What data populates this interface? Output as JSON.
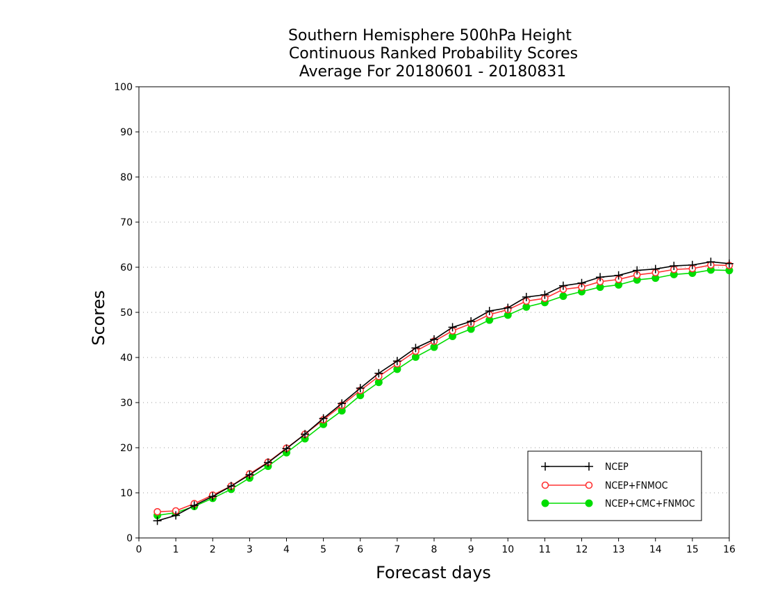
{
  "chart_data": {
    "type": "line",
    "title_lines": [
      "Southern Hemisphere 500hPa Height",
      "Continuous Ranked Probability Scores",
      "Average For 20180601 - 20180831"
    ],
    "xlabel": "Forecast days",
    "ylabel": "Scores",
    "xlim": [
      0,
      16
    ],
    "ylim": [
      0,
      100
    ],
    "xticks": [
      0,
      1,
      2,
      3,
      4,
      5,
      6,
      7,
      8,
      9,
      10,
      11,
      12,
      13,
      14,
      15,
      16
    ],
    "yticks": [
      0,
      10,
      20,
      30,
      40,
      50,
      60,
      70,
      80,
      90,
      100
    ],
    "grid": "horizontal dotted",
    "legend_position": "bottom-right",
    "x": [
      0.5,
      1,
      1.5,
      2,
      2.5,
      3,
      3.5,
      4,
      4.5,
      5,
      5.5,
      6,
      6.5,
      7,
      7.5,
      8,
      8.5,
      9,
      9.5,
      10,
      10.5,
      11,
      11.5,
      12,
      12.5,
      13,
      13.5,
      14,
      14.5,
      15,
      15.5,
      16
    ],
    "series": [
      {
        "name": "NCEP",
        "color": "#000000",
        "marker": "plus",
        "values": [
          3.8,
          5.0,
          7.2,
          9.2,
          11.5,
          14.0,
          16.7,
          19.8,
          23.0,
          26.5,
          29.8,
          33.2,
          36.5,
          39.2,
          42.1,
          44.0,
          46.7,
          48.0,
          50.3,
          51.0,
          53.4,
          53.9,
          55.9,
          56.5,
          57.8,
          58.2,
          59.3,
          59.6,
          60.3,
          60.5,
          61.2,
          60.8
        ]
      },
      {
        "name": "NCEP+FNMOC",
        "color": "#ff3333",
        "marker": "open-circle",
        "values": [
          5.8,
          6.0,
          7.6,
          9.5,
          11.5,
          14.2,
          16.8,
          19.9,
          23.0,
          26.2,
          29.4,
          32.7,
          35.8,
          38.6,
          41.4,
          43.6,
          45.9,
          47.5,
          49.5,
          50.6,
          52.5,
          53.1,
          55.1,
          55.6,
          56.8,
          57.3,
          58.3,
          58.8,
          59.5,
          59.7,
          60.5,
          60.4
        ]
      },
      {
        "name": "NCEP+CMC+FNMOC",
        "color": "#00dd00",
        "marker": "filled-circle",
        "values": [
          5.0,
          5.6,
          7.0,
          8.8,
          10.8,
          13.3,
          15.9,
          18.9,
          22.0,
          25.2,
          28.2,
          31.6,
          34.5,
          37.4,
          40.1,
          42.3,
          44.7,
          46.3,
          48.3,
          49.4,
          51.2,
          52.2,
          53.6,
          54.6,
          55.6,
          56.1,
          57.2,
          57.6,
          58.4,
          58.7,
          59.4,
          59.3
        ]
      }
    ]
  }
}
